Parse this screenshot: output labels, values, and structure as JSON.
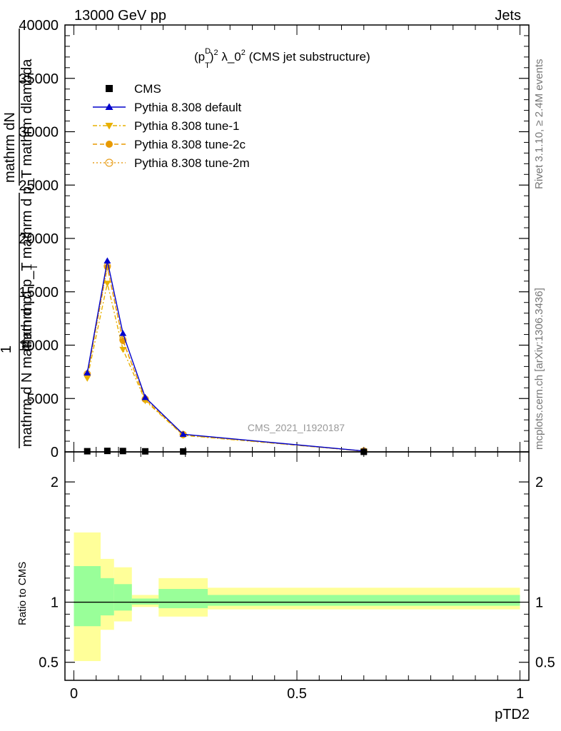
{
  "header": {
    "left": "13000 GeV pp",
    "right": "Jets"
  },
  "plot_title_parts": {
    "p": "(p",
    "sup_d": "D",
    "sub_t": "T",
    "close": ")",
    "sup_2": "2",
    "rest": " λ_0",
    "sup_2b": "2",
    "tail": " (CMS jet substructure)"
  },
  "watermark": "CMS_2021_I1920187",
  "side_labels": {
    "rivet": "Rivet 3.1.10, ≥ 2.4M events",
    "mcplots": "mcplots.cern.ch [arXiv:1306.3436]"
  },
  "y_axis_label": {
    "line_num": "mathrm dN",
    "line_mid": "mathrm d p_T mathrm d p_T mathrm dlambda",
    "one": "1",
    "line_den": "mathrm d N mathrm d p",
    "sub_t": "T"
  },
  "ratio_ylabel": "Ratio to CMS",
  "xlabel": "pTD2",
  "legend": [
    {
      "label": "CMS",
      "color": "#000000",
      "marker": "square",
      "dash": "none"
    },
    {
      "label": "Pythia 8.308 default",
      "color": "#0000cc",
      "marker": "triangle-up",
      "dash": "solid"
    },
    {
      "label": "Pythia 8.308 tune-1",
      "color": "#e8b000",
      "marker": "triangle-down",
      "dash": "dashdot"
    },
    {
      "label": "Pythia 8.308 tune-2c",
      "color": "#e89a00",
      "marker": "circle",
      "dash": "dashed"
    },
    {
      "label": "Pythia 8.308 tune-2m",
      "color": "#e8a020",
      "marker": "open-circle",
      "dash": "dotted"
    }
  ],
  "chart_data": [
    {
      "type": "line",
      "panel": "main",
      "xlim": [
        -0.02,
        1.02
      ],
      "ylim": [
        0,
        40000
      ],
      "x_ticks": [
        0,
        0.5,
        1
      ],
      "y_ticks": [
        0,
        5000,
        10000,
        15000,
        20000,
        25000,
        30000,
        35000,
        40000
      ],
      "y_tick_labels": [
        "0",
        "5000",
        "10000",
        "15000",
        "20000",
        "25000",
        "30000",
        "35000",
        "40000"
      ],
      "x": [
        0.03,
        0.075,
        0.11,
        0.16,
        0.245,
        0.65
      ],
      "series": [
        {
          "name": "CMS",
          "values": [
            60,
            90,
            80,
            50,
            40,
            5
          ]
        },
        {
          "name": "Pythia 8.308 default",
          "values": [
            7400,
            17900,
            11100,
            5100,
            1650,
            80
          ]
        },
        {
          "name": "Pythia 8.308 tune-1",
          "values": [
            6900,
            15800,
            9600,
            4800,
            1550,
            70
          ]
        },
        {
          "name": "Pythia 8.308 tune-2c",
          "values": [
            7200,
            17300,
            10400,
            4900,
            1600,
            75
          ]
        },
        {
          "name": "Pythia 8.308 tune-2m",
          "values": [
            7300,
            17400,
            10500,
            4950,
            1620,
            78
          ]
        }
      ]
    },
    {
      "type": "area",
      "panel": "ratio",
      "xlim": [
        -0.02,
        1.02
      ],
      "ylim": [
        0.35,
        2.25
      ],
      "y_ticks": [
        0.5,
        1,
        2
      ],
      "y_tick_labels": [
        "0.5",
        "1",
        "2"
      ],
      "x_tick_labels": [
        "0",
        "0.5",
        "1"
      ],
      "reference_line": 1,
      "bins": [
        {
          "x_low": 0.0,
          "x_high": 0.06,
          "inner": [
            0.8,
            1.3
          ],
          "outer": [
            0.51,
            1.58
          ]
        },
        {
          "x_low": 0.06,
          "x_high": 0.09,
          "inner": [
            0.89,
            1.2
          ],
          "outer": [
            0.77,
            1.36
          ]
        },
        {
          "x_low": 0.09,
          "x_high": 0.13,
          "inner": [
            0.93,
            1.15
          ],
          "outer": [
            0.84,
            1.29
          ]
        },
        {
          "x_low": 0.13,
          "x_high": 0.19,
          "inner": [
            0.98,
            1.03
          ],
          "outer": [
            0.96,
            1.06
          ]
        },
        {
          "x_low": 0.19,
          "x_high": 0.3,
          "inner": [
            0.95,
            1.11
          ],
          "outer": [
            0.88,
            1.2
          ]
        },
        {
          "x_low": 0.3,
          "x_high": 1.0,
          "inner": [
            0.97,
            1.06
          ],
          "outer": [
            0.94,
            1.12
          ]
        }
      ]
    }
  ]
}
